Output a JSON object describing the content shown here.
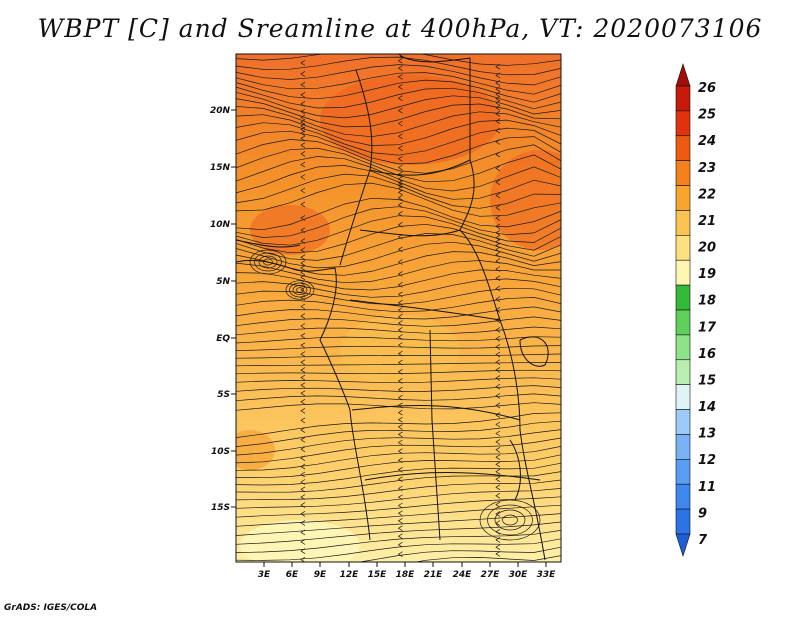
{
  "title": "WBPT [C] and Sreamline at 400hPa, VT: 2020073106",
  "credit": "GrADS: IGES/COLA",
  "map": {
    "lat_labels": [
      "20N",
      "15N",
      "10N",
      "5N",
      "EQ",
      "5S",
      "10S",
      "15S"
    ],
    "lon_labels": [
      "3E",
      "6E",
      "9E",
      "12E",
      "15E",
      "18E",
      "21E",
      "24E",
      "27E",
      "30E",
      "33E"
    ]
  },
  "colorbar": {
    "labels": [
      "7",
      "9",
      "11",
      "12",
      "13",
      "14",
      "15",
      "16",
      "17",
      "18",
      "19",
      "20",
      "21",
      "22",
      "23",
      "24",
      "25",
      "26"
    ],
    "colors": [
      "#1e5fd8",
      "#2c73e6",
      "#3d87ee",
      "#5a9ef3",
      "#79b3f6",
      "#9ccaf9",
      "#e0f4f8",
      "#b8efb0",
      "#8ee28a",
      "#5fd05b",
      "#34b837",
      "#fff6b4",
      "#fde080",
      "#fbc451",
      "#f8a52e",
      "#f4811b",
      "#ef5a12",
      "#e0320d",
      "#c61a0a",
      "#a30d08"
    ]
  }
}
